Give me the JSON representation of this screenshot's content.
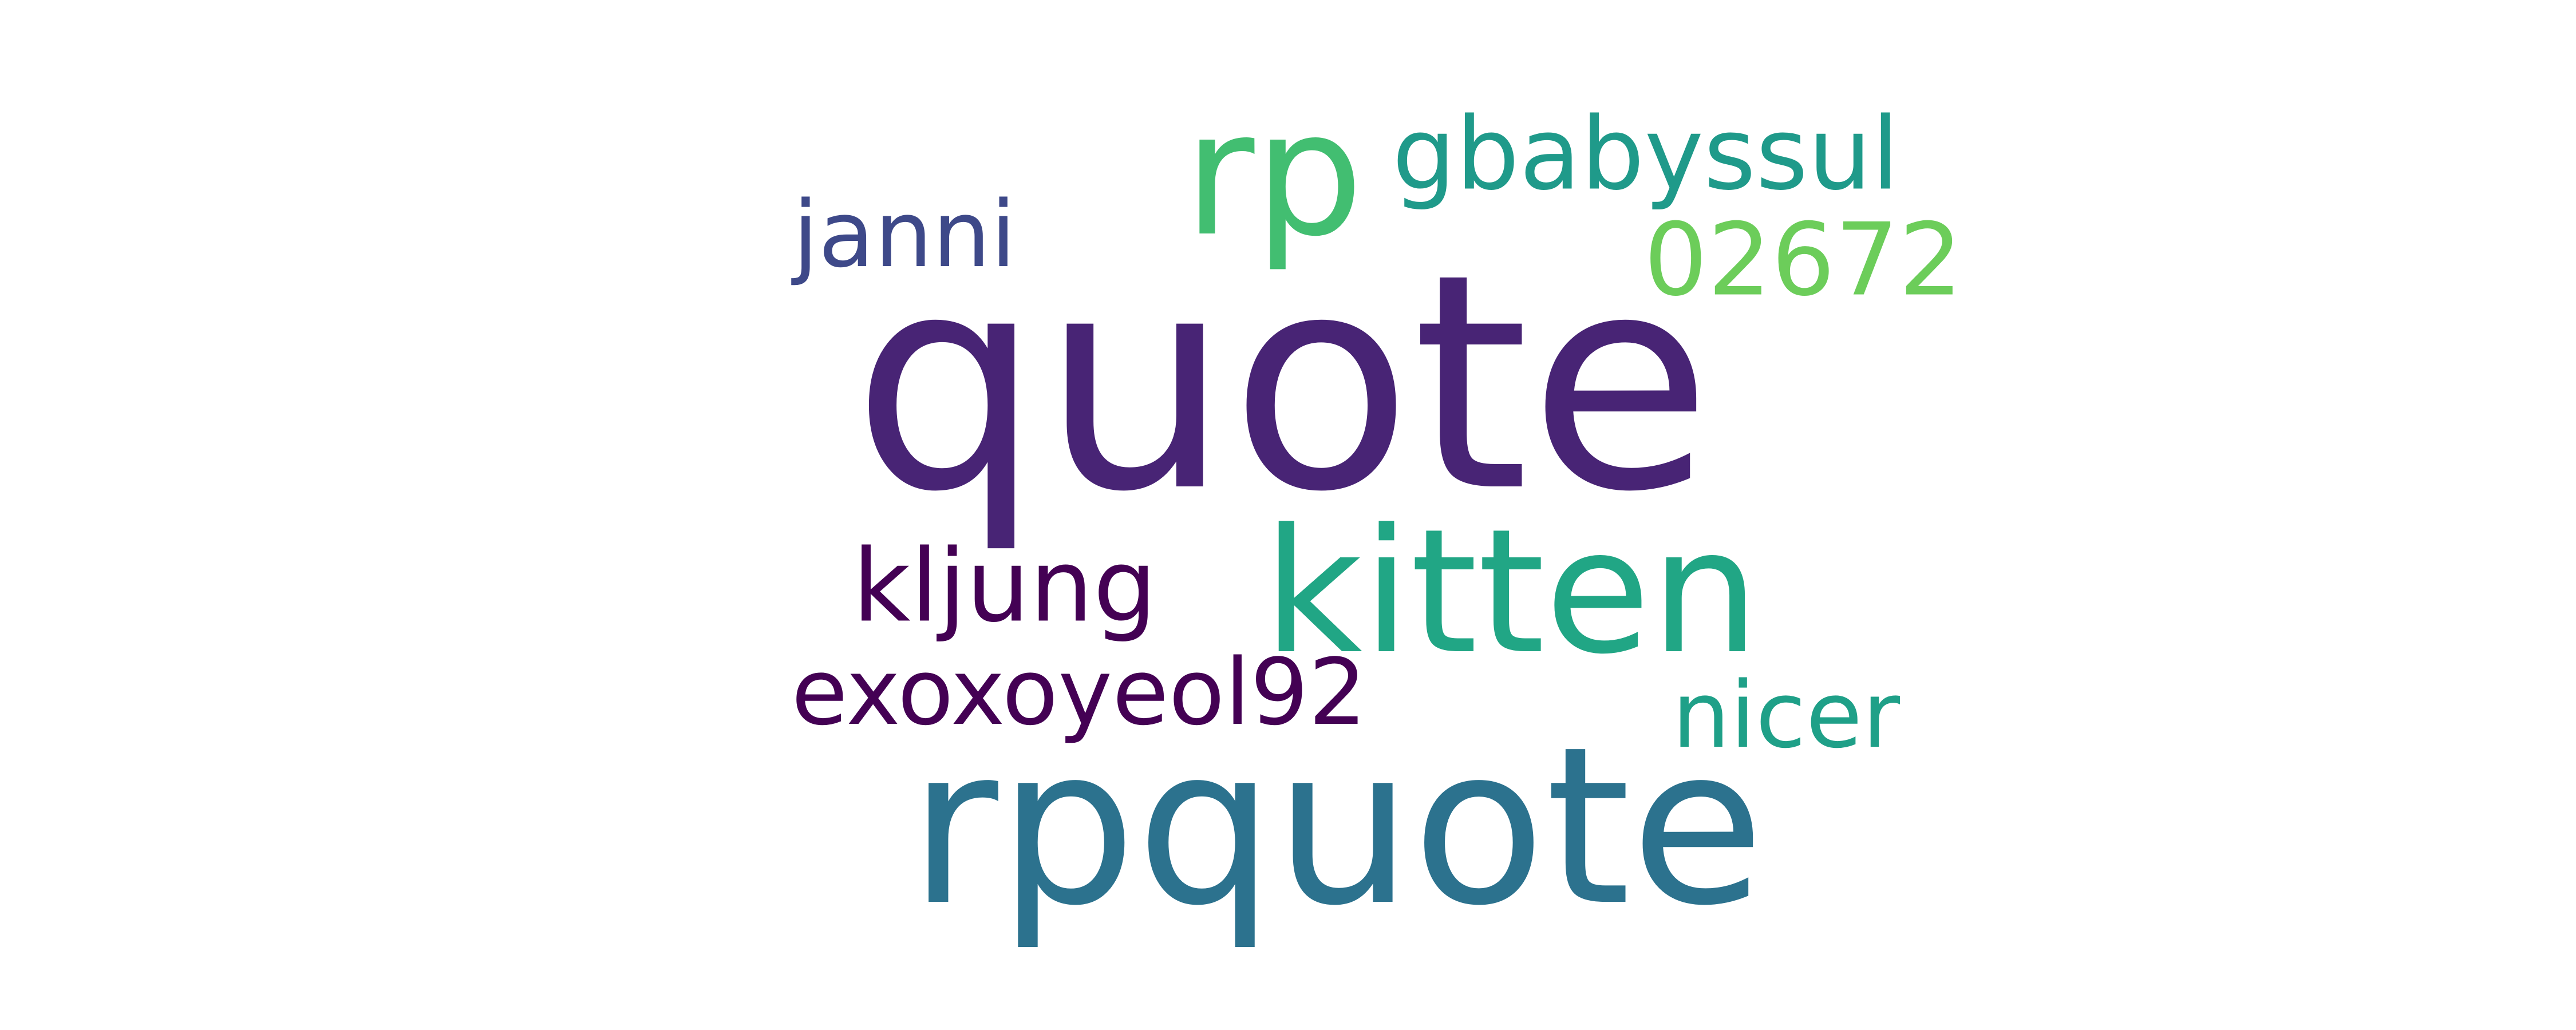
{
  "wordcloud": {
    "words": [
      {
        "id": "quote",
        "text": "quote",
        "color": "#482475"
      },
      {
        "id": "rpquote",
        "text": "rpquote",
        "color": "#2c728e"
      },
      {
        "id": "kitten",
        "text": "kitten",
        "color": "#21a685"
      },
      {
        "id": "rp",
        "text": "rp",
        "color": "#42be71"
      },
      {
        "id": "gbabyssul",
        "text": "gbabyssul",
        "color": "#1f9a8a"
      },
      {
        "id": "02672",
        "text": "02672",
        "color": "#6ccd5a"
      },
      {
        "id": "janni",
        "text": "janni",
        "color": "#3e4989"
      },
      {
        "id": "kljung",
        "text": "kljung",
        "color": "#440154"
      },
      {
        "id": "exoxoyeol92",
        "text": "exoxoyeol92",
        "color": "#440154"
      },
      {
        "id": "nicer",
        "text": "nicer",
        "color": "#1fa088"
      }
    ]
  }
}
